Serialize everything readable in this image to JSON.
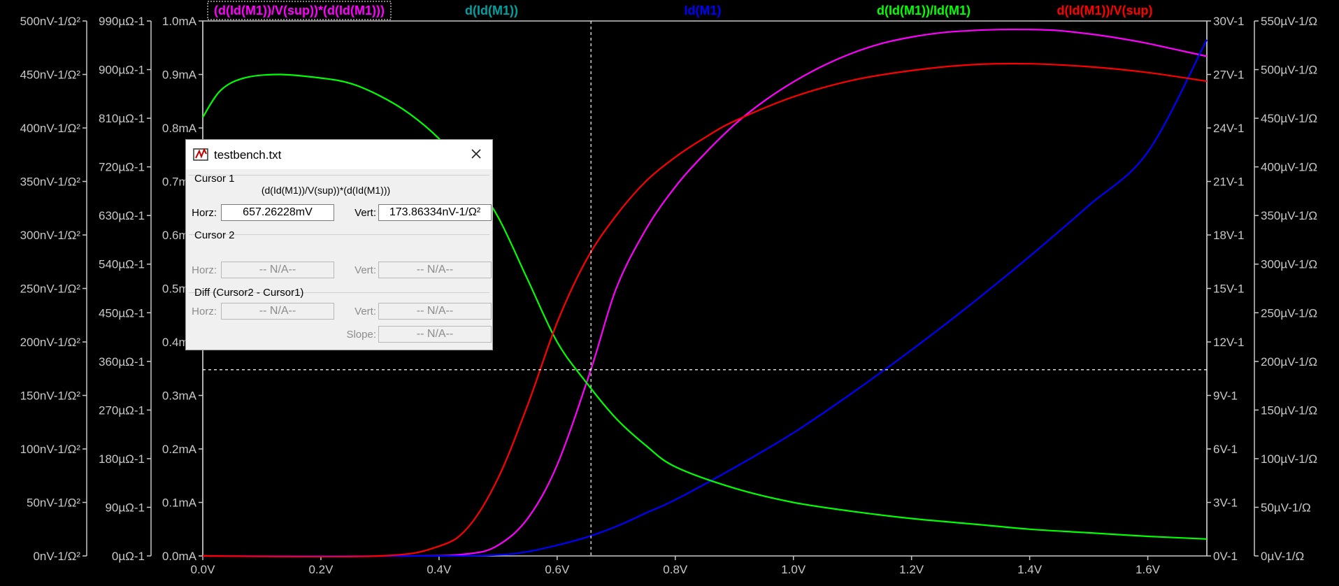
{
  "window": {
    "title": "testbench.txt",
    "close_icon": "close-icon",
    "app_icon": "ltspice-icon"
  },
  "cursor_dialog": {
    "cursor1": {
      "group_label": "Cursor 1",
      "expression": "(d(Id(M1))/V(sup))*(d(Id(M1)))",
      "horz_label": "Horz:",
      "horz_value": "657.26228mV",
      "vert_label": "Vert:",
      "vert_value": "173.86334nV-1/Ω²"
    },
    "cursor2": {
      "group_label": "Cursor 2",
      "horz_label": "Horz:",
      "horz_value": "-- N/A--",
      "vert_label": "Vert:",
      "vert_value": "-- N/A--"
    },
    "diff": {
      "group_label": "Diff (Cursor2 - Cursor1)",
      "horz_label": "Horz:",
      "horz_value": "-- N/A--",
      "vert_label": "Vert:",
      "vert_value": "-- N/A--",
      "slope_label": "Slope:",
      "slope_value": "-- N/A--"
    }
  },
  "chart_data": {
    "type": "line",
    "background": "#000000",
    "grid": false,
    "xlim": [
      0,
      1.7
    ],
    "x_ticks": [
      0,
      0.2,
      0.4,
      0.6,
      0.8,
      1.0,
      1.2,
      1.4,
      1.6
    ],
    "x_tick_labels": [
      "0.0V",
      "0.2V",
      "0.4V",
      "0.6V",
      "0.8V",
      "1.0V",
      "1.2V",
      "1.4V",
      "1.6V"
    ],
    "cursor": {
      "x": 0.65726,
      "y_fraction": 0.348
    },
    "axes": [
      {
        "id": "left_outer",
        "side": "left",
        "max": 500,
        "labels": [
          "0nV-1/Ω²",
          "50nV-1/Ω²",
          "100nV-1/Ω²",
          "150nV-1/Ω²",
          "200nV-1/Ω²",
          "250nV-1/Ω²",
          "300nV-1/Ω²",
          "350nV-1/Ω²",
          "400nV-1/Ω²",
          "450nV-1/Ω²",
          "500nV-1/Ω²"
        ]
      },
      {
        "id": "left_mid",
        "side": "left",
        "max": 990,
        "labels": [
          "0µΩ-1",
          "90µΩ-1",
          "180µΩ-1",
          "270µΩ-1",
          "360µΩ-1",
          "450µΩ-1",
          "540µΩ-1",
          "630µΩ-1",
          "720µΩ-1",
          "810µΩ-1",
          "900µΩ-1",
          "990µΩ-1"
        ]
      },
      {
        "id": "left_inner",
        "side": "left",
        "max": 1.0,
        "labels": [
          "0.0mA",
          "0.1mA",
          "0.2mA",
          "0.3mA",
          "0.4mA",
          "0.5mA",
          "0.6mA",
          "0.7mA",
          "0.8mA",
          "0.9mA",
          "1.0mA"
        ]
      },
      {
        "id": "right_inner",
        "side": "right",
        "max": 30,
        "labels": [
          "0V-1",
          "3V-1",
          "6V-1",
          "9V-1",
          "12V-1",
          "15V-1",
          "18V-1",
          "21V-1",
          "24V-1",
          "27V-1",
          "30V-1"
        ]
      },
      {
        "id": "right_outer",
        "side": "right",
        "max": 550,
        "labels": [
          "0µV-1/Ω",
          "50µV-1/Ω",
          "100µV-1/Ω",
          "150µV-1/Ω",
          "200µV-1/Ω",
          "250µV-1/Ω",
          "300µV-1/Ω",
          "350µV-1/Ω",
          "400µV-1/Ω",
          "450µV-1/Ω",
          "500µV-1/Ω",
          "550µV-1/Ω"
        ]
      }
    ],
    "series": [
      {
        "name": "(d(Id(M1))/V(sup))*(d(Id(M1)))",
        "color": "#ff00ff",
        "axis": "left_outer",
        "x": [
          0,
          0.35,
          0.45,
          0.5,
          0.55,
          0.6,
          0.657,
          0.7,
          0.75,
          0.8,
          0.85,
          0.9,
          0.95,
          1.0,
          1.05,
          1.1,
          1.15,
          1.2,
          1.25,
          1.3,
          1.35,
          1.4,
          1.45,
          1.5,
          1.55,
          1.6,
          1.65,
          1.7
        ],
        "y": [
          0,
          0,
          2,
          10,
          35,
          85,
          174,
          250,
          305,
          345,
          376,
          403,
          425,
          443,
          458,
          470,
          479,
          485,
          489,
          491,
          492,
          492,
          491,
          488,
          484,
          479,
          473,
          467
        ]
      },
      {
        "name": "d(Id(M1))",
        "color": "#00a0a0",
        "axis": "left_mid",
        "x": [],
        "y": []
      },
      {
        "name": "Id(M1)",
        "color": "#0000ff",
        "axis": "left_inner",
        "x": [
          0,
          0.4,
          0.5,
          0.55,
          0.6,
          0.65,
          0.7,
          0.75,
          0.8,
          0.9,
          1.0,
          1.1,
          1.2,
          1.3,
          1.4,
          1.5,
          1.6,
          1.7
        ],
        "y": [
          0,
          0,
          0.002,
          0.008,
          0.02,
          0.035,
          0.055,
          0.08,
          0.105,
          0.165,
          0.23,
          0.305,
          0.385,
          0.47,
          0.56,
          0.655,
          0.755,
          0.965
        ]
      },
      {
        "name": "d(Id(M1))/Id(M1)",
        "color": "#00ff00",
        "axis": "right_inner",
        "x": [
          0,
          0.03,
          0.07,
          0.13,
          0.2,
          0.25,
          0.3,
          0.35,
          0.4,
          0.45,
          0.5,
          0.55,
          0.6,
          0.65,
          0.7,
          0.75,
          0.8,
          0.9,
          1.0,
          1.1,
          1.2,
          1.3,
          1.4,
          1.5,
          1.6,
          1.7
        ],
        "y": [
          24.6,
          26.1,
          26.8,
          27.0,
          26.8,
          26.5,
          25.8,
          24.8,
          23.4,
          21.5,
          19.0,
          15.5,
          12.0,
          9.7,
          7.7,
          6.2,
          5.0,
          3.8,
          3.0,
          2.5,
          2.1,
          1.8,
          1.5,
          1.3,
          1.1,
          0.95
        ]
      },
      {
        "name": "d(Id(M1))/V(sup)",
        "color": "#ff0000",
        "axis": "right_outer",
        "x": [
          0,
          0.3,
          0.4,
          0.45,
          0.5,
          0.55,
          0.6,
          0.65,
          0.7,
          0.75,
          0.8,
          0.85,
          0.9,
          1.0,
          1.1,
          1.2,
          1.3,
          1.4,
          1.5,
          1.6,
          1.7
        ],
        "y": [
          0,
          0,
          10,
          30,
          80,
          155,
          240,
          305,
          350,
          385,
          410,
          430,
          447,
          472,
          489,
          499,
          505,
          506,
          503,
          497,
          488
        ]
      }
    ],
    "legend": {
      "placement": "top",
      "entries": [
        {
          "text": "(d(Id(M1))/V(sup))*(d(Id(M1)))",
          "color": "#ff00ff",
          "boxed": true
        },
        {
          "text": "d(Id(M1))",
          "color": "#00a0a0"
        },
        {
          "text": "Id(M1)",
          "color": "#0000ff"
        },
        {
          "text": "d(Id(M1))/Id(M1)",
          "color": "#00ff00"
        },
        {
          "text": "d(Id(M1))/V(sup)",
          "color": "#ff0000"
        }
      ]
    }
  }
}
